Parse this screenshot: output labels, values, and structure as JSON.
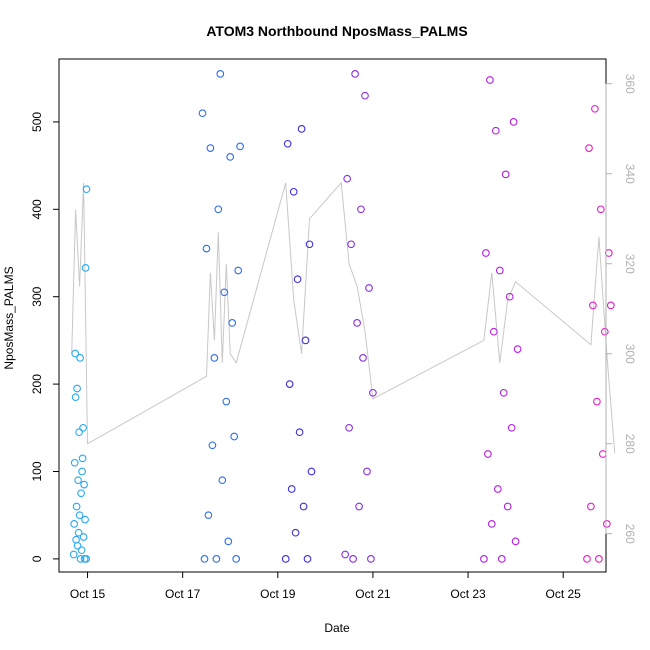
{
  "chart_data": {
    "type": "scatter",
    "title": "ATOM3 Northbound NposMass_PALMS",
    "xlabel": "Date",
    "ylabel": "NposMass_PALMS",
    "x_ticks": [
      "Oct 15",
      "Oct 17",
      "Oct 19",
      "Oct 21",
      "Oct 23",
      "Oct 25"
    ],
    "y_ticks": [
      0,
      100,
      200,
      300,
      400,
      500
    ],
    "y2_ticks": [
      260,
      280,
      300,
      320,
      340,
      360
    ],
    "x_range_days": [
      14.4,
      25.9
    ],
    "ylim": [
      -15,
      572
    ],
    "y2lim": [
      251.5,
      365.5
    ],
    "grid": false,
    "secondary_line_color": "#c8c8c8",
    "series": [
      {
        "color": "#2aa8f0",
        "x": [
          "2016-10-14T17:00",
          "2016-10-14T17:15",
          "2016-10-14T17:30",
          "2016-10-14T17:45",
          "2016-10-14T18:00",
          "2016-10-14T18:15",
          "2016-10-14T18:30",
          "2016-10-14T18:45",
          "2016-10-14T19:00",
          "2016-10-14T19:15",
          "2016-10-14T19:30",
          "2016-10-14T19:45",
          "2016-10-14T20:00",
          "2016-10-14T20:15",
          "2016-10-14T20:30",
          "2016-10-14T20:45",
          "2016-10-14T21:00",
          "2016-10-14T21:15",
          "2016-10-14T21:30",
          "2016-10-14T21:45",
          "2016-10-14T22:00",
          "2016-10-14T22:15",
          "2016-10-14T22:30",
          "2016-10-14T22:45",
          "2016-10-14T23:00",
          "2016-10-14T23:15",
          "2016-10-14T23:30"
        ],
        "values": [
          5,
          40,
          110,
          235,
          185,
          22,
          60,
          195,
          15,
          90,
          30,
          145,
          50,
          230,
          0,
          75,
          10,
          100,
          115,
          150,
          25,
          85,
          0,
          45,
          333,
          0,
          423
        ]
      },
      {
        "color": "#2f6fe8",
        "x": [
          "2016-10-17T10:00",
          "2016-10-17T11:00",
          "2016-10-17T12:00",
          "2016-10-17T13:00",
          "2016-10-17T14:00",
          "2016-10-17T15:00",
          "2016-10-17T16:00",
          "2016-10-17T17:00",
          "2016-10-17T18:00",
          "2016-10-17T19:00",
          "2016-10-17T20:00",
          "2016-10-17T21:00",
          "2016-10-17T22:00",
          "2016-10-17T23:00",
          "2016-10-18T00:00",
          "2016-10-18T01:00",
          "2016-10-18T02:00",
          "2016-10-18T03:00",
          "2016-10-18T04:00",
          "2016-10-18T05:00"
        ],
        "values": [
          510,
          0,
          355,
          50,
          470,
          130,
          230,
          0,
          400,
          555,
          90,
          305,
          180,
          20,
          460,
          270,
          140,
          0,
          330,
          472
        ]
      },
      {
        "color": "#3a2fe0",
        "x": [
          "2016-10-19T04:00",
          "2016-10-19T05:00",
          "2016-10-19T06:00",
          "2016-10-19T07:00",
          "2016-10-19T08:00",
          "2016-10-19T09:00",
          "2016-10-19T10:00",
          "2016-10-19T11:00",
          "2016-10-19T12:00",
          "2016-10-19T13:00",
          "2016-10-19T14:00",
          "2016-10-19T15:00",
          "2016-10-19T16:00",
          "2016-10-19T17:00"
        ],
        "values": [
          0,
          475,
          200,
          80,
          420,
          30,
          320,
          145,
          492,
          60,
          250,
          0,
          360,
          100
        ]
      },
      {
        "color": "#8a2ee0",
        "x": [
          "2016-10-20T10:00",
          "2016-10-20T11:00",
          "2016-10-20T12:00",
          "2016-10-20T13:00",
          "2016-10-20T14:00",
          "2016-10-20T15:00",
          "2016-10-20T16:00",
          "2016-10-20T17:00",
          "2016-10-20T18:00",
          "2016-10-20T19:00",
          "2016-10-20T20:00",
          "2016-10-20T21:00",
          "2016-10-20T22:00",
          "2016-10-20T23:00",
          "2016-10-21T00:00"
        ],
        "values": [
          5,
          435,
          150,
          360,
          0,
          555,
          270,
          60,
          400,
          230,
          530,
          100,
          310,
          0,
          190
        ]
      },
      {
        "color": "#b51ee6",
        "x": [
          "2016-10-23T08:00",
          "2016-10-23T09:00",
          "2016-10-23T10:00",
          "2016-10-23T11:00",
          "2016-10-23T12:00",
          "2016-10-23T13:00",
          "2016-10-23T14:00",
          "2016-10-23T15:00",
          "2016-10-23T16:00",
          "2016-10-23T17:00",
          "2016-10-23T18:00",
          "2016-10-23T19:00",
          "2016-10-23T20:00",
          "2016-10-23T21:00",
          "2016-10-23T22:00",
          "2016-10-23T23:00",
          "2016-10-24T00:00",
          "2016-10-24T01:00"
        ],
        "values": [
          0,
          350,
          120,
          548,
          40,
          260,
          490,
          80,
          330,
          0,
          190,
          440,
          60,
          300,
          150,
          500,
          20,
          240
        ]
      },
      {
        "color": "#e61ec8",
        "x": [
          "2016-10-25T12:00",
          "2016-10-25T13:00",
          "2016-10-25T14:00",
          "2016-10-25T15:00",
          "2016-10-25T16:00",
          "2016-10-25T17:00",
          "2016-10-25T18:00",
          "2016-10-25T19:00",
          "2016-10-25T20:00",
          "2016-10-25T21:00",
          "2016-10-25T22:00",
          "2016-10-25T23:00",
          "2016-10-26T00:00"
        ],
        "values": [
          0,
          470,
          60,
          290,
          515,
          180,
          0,
          400,
          120,
          260,
          40,
          350,
          290
        ]
      }
    ],
    "secondary_line": {
      "x": [
        "2016-10-14T16:00",
        "2016-10-14T18:00",
        "2016-10-14T20:00",
        "2016-10-14T22:00",
        "2016-10-15T00:00",
        "2016-10-17T12:00",
        "2016-10-17T14:00",
        "2016-10-17T16:00",
        "2016-10-17T18:00",
        "2016-10-17T20:00",
        "2016-10-17T22:00",
        "2016-10-18T00:00",
        "2016-10-18T03:00",
        "2016-10-19T04:00",
        "2016-10-19T08:00",
        "2016-10-19T12:00",
        "2016-10-19T16:00",
        "2016-10-20T08:00",
        "2016-10-20T12:00",
        "2016-10-20T16:00",
        "2016-10-20T20:00",
        "2016-10-21T00:00",
        "2016-10-23T08:00",
        "2016-10-23T12:00",
        "2016-10-23T16:00",
        "2016-10-23T20:00",
        "2016-10-24T00:00",
        "2016-10-25T14:00",
        "2016-10-25T18:00",
        "2016-10-25T22:00",
        "2016-10-26T02:00"
      ],
      "y2": [
        300,
        332,
        315,
        338,
        280,
        295,
        318,
        303,
        327,
        298,
        320,
        300,
        298,
        338,
        312,
        300,
        330,
        338,
        320,
        315,
        305,
        290,
        303,
        318,
        298,
        312,
        316,
        302,
        326,
        300,
        278
      ]
    }
  }
}
